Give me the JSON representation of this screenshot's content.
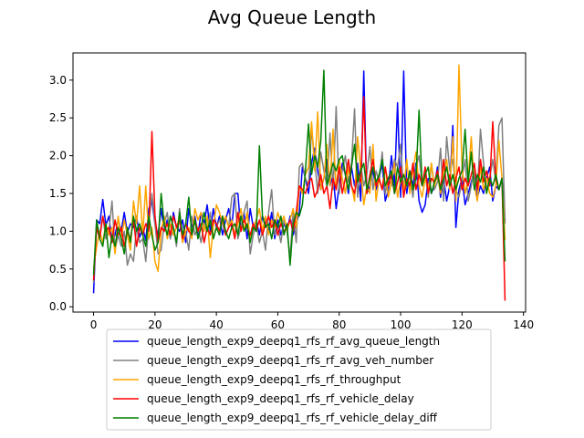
{
  "chart_data": {
    "type": "line",
    "title": "Avg Queue Length",
    "xlabel": "",
    "ylabel": "",
    "xlim": [
      -6.7,
      140.7
    ],
    "ylim": [
      -0.07,
      3.36
    ],
    "xticks": [
      0,
      20,
      40,
      60,
      80,
      100,
      120,
      140
    ],
    "yticks": [
      0.0,
      0.5,
      1.0,
      1.5,
      2.0,
      2.5,
      3.0
    ],
    "grid": false,
    "legend_position": "below",
    "series": [
      {
        "name": "queue_length_exp9_deepq1_rfs_rf_avg_queue_length",
        "color": "#0000ff",
        "values": [
          0.18,
          1.15,
          1.1,
          1.42,
          1.08,
          1.2,
          0.85,
          0.95,
          1.15,
          1.0,
          1.25,
          0.98,
          1.1,
          1.05,
          1.2,
          0.92,
          1.05,
          0.88,
          1.3,
          1.4,
          1.1,
          0.95,
          1.3,
          1.0,
          1.15,
          0.9,
          1.25,
          1.05,
          1.0,
          1.15,
          0.85,
          1.3,
          1.05,
          1.2,
          0.95,
          1.25,
          1.1,
          1.35,
          1.0,
          1.3,
          1.05,
          1.2,
          0.95,
          1.15,
          1.3,
          1.05,
          1.5,
          1.5,
          1.0,
          1.25,
          0.9,
          1.3,
          1.05,
          1.15,
          0.95,
          1.2,
          1.1,
          1.0,
          1.25,
          0.9,
          1.15,
          0.95,
          1.1,
          1.0,
          1.2,
          0.95,
          1.1,
          1.25,
          1.85,
          1.7,
          1.5,
          1.9,
          2.1,
          1.8,
          1.55,
          1.7,
          1.95,
          1.6,
          1.75,
          1.3,
          1.6,
          1.9,
          1.75,
          1.5,
          1.85,
          1.6,
          1.9,
          1.4,
          3.12,
          1.5,
          1.6,
          1.8,
          1.55,
          1.7,
          1.9,
          1.4,
          1.55,
          2.0,
          1.6,
          2.7,
          1.45,
          3.12,
          1.5,
          1.8,
          1.6,
          1.9,
          1.4,
          1.25,
          1.35,
          1.7,
          1.5,
          1.6,
          1.85,
          1.45,
          1.7,
          1.4,
          1.6,
          2.4,
          1.05,
          1.55,
          1.7,
          1.35,
          1.5,
          1.65,
          1.8,
          1.45,
          1.6,
          1.5,
          1.7,
          1.85,
          1.4,
          1.6,
          1.55,
          1.7,
          1.15
        ]
      },
      {
        "name": "queue_length_exp9_deepq1_rfs_rf_avg_veh_number",
        "color": "#808080",
        "values": [
          0.32,
          1.1,
          0.95,
          1.2,
          0.9,
          1.0,
          1.4,
          0.75,
          0.95,
          0.8,
          1.0,
          0.55,
          0.7,
          0.6,
          1.05,
          0.85,
          0.9,
          0.6,
          1.1,
          1.5,
          1.1,
          0.7,
          0.75,
          1.1,
          1.25,
          0.9,
          1.05,
          0.8,
          1.3,
          0.85,
          1.0,
          0.75,
          1.2,
          0.95,
          1.05,
          0.85,
          1.1,
          1.0,
          1.25,
          0.9,
          1.05,
          1.15,
          1.1,
          0.95,
          1.05,
          1.45,
          1.5,
          0.9,
          1.05,
          1.25,
          1.4,
          0.7,
          0.95,
          1.1,
          0.85,
          1.0,
          0.75,
          1.25,
          1.55,
          0.95,
          1.05,
          0.85,
          1.15,
          1.0,
          0.65,
          1.25,
          0.85,
          1.85,
          1.9,
          1.7,
          1.6,
          2.35,
          1.95,
          1.5,
          2.05,
          1.8,
          1.6,
          2.3,
          1.55,
          2.65,
          1.5,
          1.8,
          2.0,
          1.65,
          1.9,
          2.62,
          1.45,
          1.9,
          1.6,
          1.75,
          2.12,
          1.55,
          1.8,
          1.65,
          2.05,
          1.5,
          1.7,
          1.6,
          1.95,
          1.85,
          2.15,
          1.5,
          1.6,
          1.75,
          1.45,
          1.85,
          2.0,
          1.6,
          1.75,
          1.45,
          1.9,
          1.55,
          1.65,
          2.1,
          1.4,
          2.25,
          1.8,
          1.95,
          1.55,
          1.45,
          1.7,
          1.95,
          1.4,
          1.6,
          1.85,
          1.5,
          2.35,
          1.9,
          1.55,
          1.7,
          1.95,
          1.65,
          2.4,
          2.5,
          1.1
        ]
      },
      {
        "name": "queue_length_exp9_deepq1_rfs_rf_throughput",
        "color": "#ffa500",
        "values": [
          0.5,
          0.8,
          1.0,
          0.85,
          1.1,
          0.95,
          1.05,
          0.7,
          1.2,
          0.9,
          1.15,
          0.95,
          0.75,
          1.4,
          1.1,
          1.6,
          0.95,
          1.6,
          0.9,
          1.05,
          0.6,
          0.47,
          1.0,
          1.2,
          0.9,
          1.1,
          0.95,
          1.05,
          1.2,
          0.85,
          1.0,
          1.05,
          0.9,
          1.3,
          1.15,
          1.25,
          1.0,
          1.2,
          0.65,
          1.05,
          1.35,
          1.25,
          1.1,
          1.2,
          1.05,
          1.15,
          0.95,
          1.1,
          1.3,
          1.0,
          1.25,
          0.9,
          1.05,
          1.15,
          1.3,
          1.0,
          1.2,
          0.95,
          1.15,
          1.05,
          1.25,
          1.1,
          1.2,
          1.0,
          1.15,
          1.3,
          1.05,
          1.6,
          1.5,
          1.75,
          1.85,
          2.45,
          1.8,
          2.58,
          1.55,
          1.7,
          2.15,
          1.6,
          2.35,
          1.55,
          1.95,
          1.7,
          1.5,
          1.85,
          1.6,
          1.4,
          2.25,
          1.8,
          1.35,
          1.6,
          1.5,
          2.15,
          1.4,
          1.7,
          1.55,
          1.85,
          1.45,
          1.65,
          1.9,
          1.45,
          1.7,
          1.55,
          1.95,
          1.5,
          1.8,
          2.05,
          1.6,
          1.45,
          1.7,
          1.55,
          1.9,
          1.6,
          1.75,
          1.5,
          1.8,
          1.95,
          1.55,
          2.25,
          1.4,
          3.2,
          1.85,
          1.5,
          1.7,
          2.25,
          1.6,
          1.4,
          1.85,
          1.55,
          1.7,
          1.5,
          1.45,
          1.6,
          2.2,
          1.7,
          0.88
        ]
      },
      {
        "name": "queue_length_exp9_deepq1_rfs_rf_vehicle_delay",
        "color": "#ff0000",
        "values": [
          0.35,
          1.05,
          0.9,
          1.2,
          1.0,
          1.05,
          0.85,
          1.15,
          0.95,
          1.05,
          0.8,
          1.0,
          0.9,
          1.15,
          0.8,
          1.05,
          0.95,
          1.1,
          1.0,
          2.32,
          1.2,
          0.85,
          1.05,
          1.0,
          1.1,
          0.95,
          1.2,
          1.05,
          1.15,
          0.9,
          1.1,
          1.0,
          0.95,
          1.15,
          1.0,
          1.1,
          0.85,
          1.05,
          0.95,
          1.15,
          1.1,
          1.0,
          1.2,
          0.95,
          1.05,
          1.1,
          0.9,
          1.25,
          1.0,
          1.15,
          1.05,
          0.95,
          1.1,
          1.0,
          1.15,
          0.95,
          1.1,
          1.2,
          1.05,
          1.15,
          0.95,
          1.1,
          1.0,
          1.05,
          1.15,
          1.0,
          1.25,
          1.6,
          1.55,
          1.5,
          1.65,
          1.7,
          1.45,
          1.55,
          1.75,
          1.5,
          1.6,
          1.3,
          1.7,
          1.55,
          1.85,
          1.5,
          1.7,
          1.95,
          1.6,
          1.5,
          1.75,
          1.65,
          2.78,
          1.5,
          1.75,
          1.95,
          1.6,
          1.7,
          1.55,
          1.85,
          1.6,
          1.75,
          1.5,
          1.65,
          1.85,
          1.45,
          1.7,
          1.6,
          1.9,
          1.55,
          1.75,
          1.6,
          1.85,
          1.5,
          1.7,
          1.65,
          1.8,
          1.55,
          1.95,
          1.6,
          1.75,
          1.5,
          1.7,
          1.85,
          1.55,
          1.7,
          1.6,
          1.75,
          1.9,
          1.55,
          1.95,
          1.65,
          1.8,
          1.6,
          2.45,
          1.7,
          1.55,
          1.7,
          0.08
        ]
      },
      {
        "name": "queue_length_exp9_deepq1_rfs_rf_vehicle_delay_diff",
        "color": "#008000",
        "values": [
          0.42,
          1.15,
          0.9,
          0.8,
          1.1,
          0.65,
          0.95,
          0.8,
          1.05,
          0.9,
          0.7,
          1.05,
          0.85,
          1.2,
          1.0,
          1.1,
          0.95,
          0.8,
          1.2,
          0.95,
          0.75,
          0.85,
          1.5,
          1.1,
          0.95,
          1.2,
          1.05,
          0.85,
          1.25,
          0.95,
          1.1,
          1.45,
          0.95,
          1.15,
          0.9,
          1.05,
          1.25,
          1.0,
          1.15,
          0.9,
          1.05,
          0.95,
          1.2,
          1.0,
          0.9,
          1.05,
          1.1,
          0.95,
          1.2,
          1.0,
          1.1,
          0.85,
          1.05,
          1.0,
          2.13,
          1.2,
          1.05,
          1.1,
          0.9,
          1.15,
          1.05,
          1.2,
          0.95,
          1.1,
          0.55,
          1.1,
          1.25,
          1.2,
          1.35,
          1.8,
          2.42,
          1.75,
          2.0,
          1.85,
          2.2,
          3.13,
          1.6,
          1.75,
          1.9,
          1.8,
          1.95,
          2.0,
          1.75,
          1.55,
          1.85,
          2.15,
          1.65,
          1.8,
          1.9,
          1.55,
          1.7,
          1.85,
          1.65,
          1.75,
          1.95,
          1.6,
          1.7,
          1.8,
          1.5,
          1.85,
          1.65,
          1.75,
          1.6,
          1.8,
          1.55,
          1.7,
          2.6,
          1.6,
          1.75,
          1.85,
          1.5,
          1.65,
          1.75,
          1.55,
          1.7,
          1.85,
          1.6,
          1.75,
          1.55,
          1.7,
          1.8,
          2.35,
          1.65,
          2.05,
          1.55,
          1.75,
          1.65,
          1.85,
          1.5,
          1.7,
          1.6,
          1.75,
          1.55,
          1.7,
          0.6
        ]
      }
    ]
  }
}
